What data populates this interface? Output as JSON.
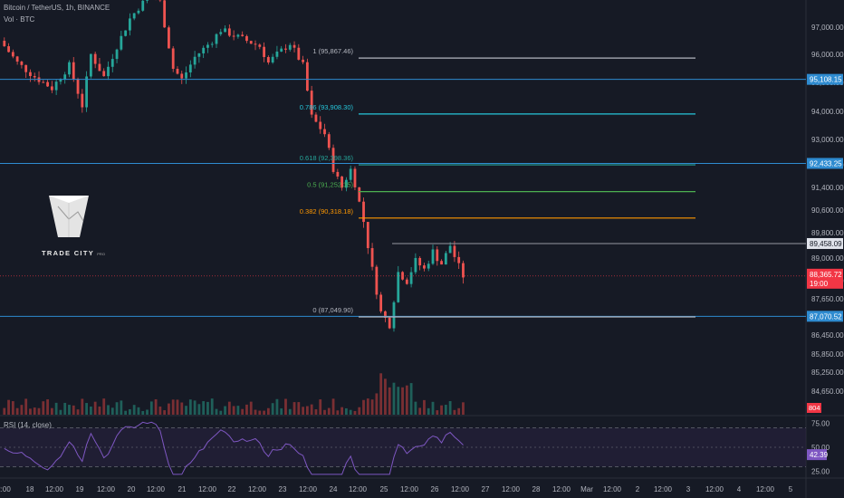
{
  "header": {
    "symbol_line": "Bitcoin / TetherUS, 1h, BINANCE",
    "volume_line": "Vol · BTC"
  },
  "logo": {
    "name": "TRADE CITY",
    "suffix": "PRO"
  },
  "rsi_label": "RSI (14, close)",
  "colors": {
    "background": "#161a25",
    "up": "#26a69a",
    "down": "#ef5350",
    "hline": "#2e8bd0",
    "price_tag": "#f23645",
    "rsi_line": "#7e57c2"
  },
  "chart_data": [
    {
      "type": "candlestick",
      "title": "Bitcoin / TetherUS, 1h, BINANCE",
      "ylim": [
        84050,
        98000
      ],
      "y_ticks": [
        "97,000.00",
        "96,000.00",
        "95,000.00",
        "94,000.00",
        "93,000.00",
        "92,400.00",
        "91,400.00",
        "90,600.00",
        "89,800.00",
        "89,000.00",
        "88,200.00",
        "87,650.00",
        "86,450.00",
        "85,850.00",
        "85,250.00",
        "84,650.00"
      ],
      "x_ticks": [
        "2:00",
        "18",
        "12:00",
        "19",
        "12:00",
        "20",
        "12:00",
        "21",
        "12:00",
        "22",
        "12:00",
        "23",
        "12:00",
        "24",
        "12:00",
        "25",
        "12:00",
        "26",
        "12:00",
        "27",
        "12:00",
        "28",
        "12:00",
        "Mar",
        "12:00",
        "2",
        "12:00",
        "3",
        "12:00",
        "4",
        "12:00",
        "5"
      ],
      "price_path": [
        [
          0,
          96500
        ],
        [
          4,
          95700
        ],
        [
          8,
          95200
        ],
        [
          12,
          94800
        ],
        [
          16,
          95600
        ],
        [
          19,
          94200
        ],
        [
          21,
          96000
        ],
        [
          24,
          95200
        ],
        [
          27,
          96300
        ],
        [
          30,
          97300
        ],
        [
          32,
          97700
        ],
        [
          35,
          98200
        ],
        [
          37,
          97900
        ],
        [
          40,
          95500
        ],
        [
          42,
          95100
        ],
        [
          45,
          95900
        ],
        [
          49,
          96500
        ],
        [
          51,
          96900
        ],
        [
          54,
          96700
        ],
        [
          57,
          96500
        ],
        [
          60,
          96300
        ],
        [
          62,
          95700
        ],
        [
          64,
          96000
        ],
        [
          67,
          96400
        ],
        [
          70,
          95600
        ],
        [
          72,
          93800
        ],
        [
          75,
          93200
        ],
        [
          77,
          92200
        ],
        [
          79,
          91400
        ],
        [
          81,
          92200
        ],
        [
          84,
          90200
        ],
        [
          86,
          88600
        ],
        [
          88,
          87200
        ],
        [
          90,
          86800
        ],
        [
          92,
          88500
        ],
        [
          94,
          88200
        ],
        [
          96,
          88900
        ],
        [
          98,
          88600
        ],
        [
          100,
          89200
        ],
        [
          102,
          88800
        ],
        [
          104,
          89400
        ],
        [
          106,
          88700
        ],
        [
          107,
          88366
        ]
      ],
      "horizontal_levels": [
        {
          "price": 95108.15,
          "label": "95,108.15"
        },
        {
          "price": 92433.25,
          "label": "92,433.25"
        },
        {
          "price": 87070.52,
          "label": "87,070.52"
        }
      ],
      "fibonacci": [
        {
          "ratio": "1",
          "price": 95867.46,
          "label": "1 (95,867.46)",
          "color": "#b2b5be"
        },
        {
          "ratio": "0.786",
          "price": 93908.3,
          "label": "0.786 (93,908.30)",
          "color": "#26c6da"
        },
        {
          "ratio": "0.618",
          "price": 92398.36,
          "label": "0.618 (92,398.36)",
          "color": "#26a69a"
        },
        {
          "ratio": "0.5",
          "price": 91252.35,
          "label": "0.5 (91,252.35)",
          "color": "#4caf50"
        },
        {
          "ratio": "0.382",
          "price": 90318.18,
          "label": "0.382 (90,318.18)",
          "color": "#ff9800"
        },
        {
          "ratio": "0",
          "price": 87049.9,
          "label": "0 (87,049.90)",
          "color": "#b2b5be"
        }
      ],
      "resistance_level": {
        "price": 89458.09,
        "label": "89,458.09"
      },
      "current_price": {
        "price": 88365.72,
        "label": "88,365.72",
        "countdown": "19:00"
      },
      "volume_tag": "804"
    },
    {
      "type": "line",
      "title": "RSI (14, close)",
      "ylim": [
        20,
        80
      ],
      "y_ticks": [
        "75.00",
        "50.00",
        "25.00"
      ],
      "bands": [
        70,
        30
      ],
      "current": {
        "value": 42.39,
        "label": "42.39"
      },
      "x_ticks": [
        "2:00",
        "18",
        "12:00",
        "19",
        "12:00",
        "20",
        "12:00",
        "21",
        "12:00",
        "22",
        "12:00",
        "23",
        "12:00",
        "24",
        "12:00",
        "25",
        "12:00",
        "26",
        "12:00",
        "27",
        "12:00",
        "28",
        "12:00",
        "Mar",
        "12:00",
        "2",
        "12:00",
        "3",
        "12:00",
        "4",
        "12:00",
        "5"
      ]
    }
  ]
}
